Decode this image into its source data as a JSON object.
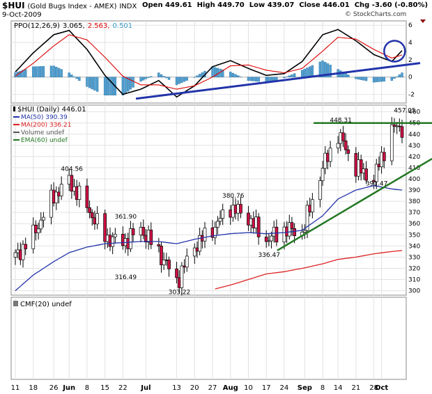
{
  "header": {
    "symbol": "$HUI",
    "description": "(Gold Bugs Index - AMEX)",
    "exchange": "INDX",
    "date": "9-Oct-2009",
    "open_label": "Open",
    "open": "449.61",
    "high_label": "High",
    "high": "449.70",
    "low_label": "Low",
    "low": "439.07",
    "close_label": "Close",
    "close": "446.01",
    "chg_label": "Chg",
    "chg": "-3.60 (-0.80%)",
    "watermark": "© StockCharts.com"
  },
  "chart_data": [
    {
      "type": "line",
      "panel": "PPO",
      "legend": [
        {
          "text": "PPO(12,26,9)",
          "color": "#000000"
        },
        {
          "text": "3.065,",
          "color": "#000000"
        },
        {
          "text": "2.563,",
          "color": "#dd0000"
        },
        {
          "text": "0.501",
          "color": "#3399cc"
        }
      ],
      "y_ticks": [
        6,
        4,
        2,
        0,
        -2
      ],
      "ylim": [
        -3,
        6.5
      ],
      "x": [
        "May 11",
        "May 18",
        "May 26",
        "Jun 1",
        "Jun 8",
        "Jun 15",
        "Jun 22",
        "Jun 29",
        "Jul 6",
        "Jul 13",
        "Jul 20",
        "Jul 27",
        "Aug 3",
        "Aug 10",
        "Aug 17",
        "Aug 24",
        "Aug 31",
        "Sep 8",
        "Sep 14",
        "Sep 21",
        "Sep 28",
        "Oct 5",
        "Oct 9"
      ],
      "series": [
        {
          "values": [
            0.6,
            2.8,
            4.9,
            5.4,
            3.2,
            0.2,
            -2.0,
            -1.4,
            -0.4,
            -2.3,
            -1.0,
            1.2,
            1.9,
            1.0,
            0.2,
            0.4,
            1.8,
            4.9,
            5.5,
            4.2,
            2.6,
            1.8,
            3.06
          ],
          "color": "#000000"
        },
        {
          "values": [
            0.1,
            1.6,
            3.6,
            4.9,
            4.3,
            2.3,
            0.1,
            -0.9,
            -0.9,
            -1.4,
            -1.0,
            0.0,
            1.3,
            1.4,
            0.8,
            0.5,
            1.0,
            3.0,
            4.6,
            4.4,
            3.2,
            2.2,
            2.56
          ],
          "color": "#dd0000"
        },
        {
          "values": [
            0.5,
            1.2,
            1.3,
            0.5,
            -1.1,
            -2.1,
            -2.1,
            -0.5,
            0.5,
            -0.9,
            0.0,
            1.2,
            0.6,
            -0.4,
            -0.6,
            -0.1,
            0.8,
            1.9,
            0.9,
            -0.2,
            -0.6,
            -0.4,
            0.5
          ],
          "color": "#3399cc",
          "style": "histogram"
        }
      ],
      "annotations": [
        {
          "type": "trendline",
          "from": {
            "x": "Jun 29",
            "y": -2.5
          },
          "to": {
            "x": "Oct 9",
            "y": 1.3
          },
          "color": "#2233aa"
        },
        {
          "type": "circle",
          "at": {
            "x": "Oct 5",
            "y": 3.0
          },
          "color": "#2233aa"
        }
      ]
    },
    {
      "type": "candlestick",
      "panel": "Price",
      "legend": [
        {
          "text": "$HUI (Daily) 446.01",
          "color": "#000000"
        },
        {
          "text": "MA(50) 390.39",
          "color": "#2233aa"
        },
        {
          "text": "MA(200) 336.21",
          "color": "#dd2222"
        },
        {
          "text": "Volume undef",
          "color": "#555555"
        },
        {
          "text": "EMA(60) undef",
          "color": "#227722"
        }
      ],
      "y_ticks": [
        460,
        450,
        440,
        430,
        420,
        410,
        400,
        390,
        380,
        370,
        360,
        350,
        340,
        330,
        320,
        310,
        300
      ],
      "ylim": [
        296,
        466
      ],
      "x": [
        "May 11",
        "May 18",
        "May 26",
        "Jun 1",
        "Jun 8",
        "Jun 15",
        "Jun 22",
        "Jun 29",
        "Jul 6",
        "Jul 13",
        "Jul 20",
        "Jul 27",
        "Aug 3",
        "Aug 10",
        "Aug 17",
        "Aug 24",
        "Aug 31",
        "Sep 8",
        "Sep 14",
        "Sep 21",
        "Sep 28",
        "Oct 5",
        "Oct 9"
      ],
      "close": [
        330,
        350,
        385,
        398,
        375,
        348,
        343,
        355,
        335,
        308,
        340,
        355,
        375,
        365,
        345,
        355,
        352,
        410,
        440,
        410,
        400,
        445,
        446
      ],
      "series": [
        {
          "name": "MA(50)",
          "color": "#2233aa",
          "values": [
            300,
            314,
            326,
            334,
            339,
            342,
            343,
            344,
            344,
            342,
            346,
            349,
            351,
            352,
            351,
            352,
            354,
            367,
            382,
            390,
            394,
            391,
            390
          ]
        },
        {
          "name": "MA(200)",
          "color": "#dd2222",
          "values": [
            null,
            null,
            null,
            null,
            null,
            null,
            null,
            null,
            null,
            null,
            null,
            301,
            305,
            310,
            315,
            317,
            320,
            324,
            328,
            330,
            333,
            335,
            336
          ]
        }
      ],
      "labels": [
        {
          "x": "Jun 1",
          "y": 404.56,
          "text": "404.56"
        },
        {
          "x": "Jun 22",
          "y": 361.9,
          "text": "361.90"
        },
        {
          "x": "Jun 22",
          "y": 316.49,
          "text": "316.49"
        },
        {
          "x": "Jul 13",
          "y": 303.22,
          "text": "303.22"
        },
        {
          "x": "Aug 3",
          "y": 380.76,
          "text": "380.76"
        },
        {
          "x": "Aug 17",
          "y": 336.47,
          "text": "336.47"
        },
        {
          "x": "Sep 14",
          "y": 448.31,
          "text": "448.31"
        },
        {
          "x": "Sep 28",
          "y": 391.47,
          "text": "391.47"
        },
        {
          "x": "Oct 9",
          "y": 457.05,
          "text": "457.05"
        }
      ],
      "annotations": [
        {
          "type": "hline",
          "y": 450,
          "from": "Sep 14",
          "to": "Oct 9",
          "color": "#227722"
        },
        {
          "type": "trendline",
          "from": {
            "x": "Aug 24",
            "y": 336
          },
          "to": {
            "x": "Oct 9",
            "y": 408
          },
          "color": "#227722"
        }
      ]
    },
    {
      "type": "line",
      "panel": "CMF",
      "legend": [
        {
          "text": "CMF(20) undef",
          "color": "#000000"
        }
      ]
    }
  ],
  "x_axis": [
    "11",
    "18",
    "26",
    "Jun",
    "8",
    "15",
    "22",
    "Jul",
    "13",
    "20",
    "27",
    "Aug",
    "10",
    "17",
    "24",
    "Sep",
    "8",
    "14",
    "21",
    "28",
    "Oct"
  ]
}
